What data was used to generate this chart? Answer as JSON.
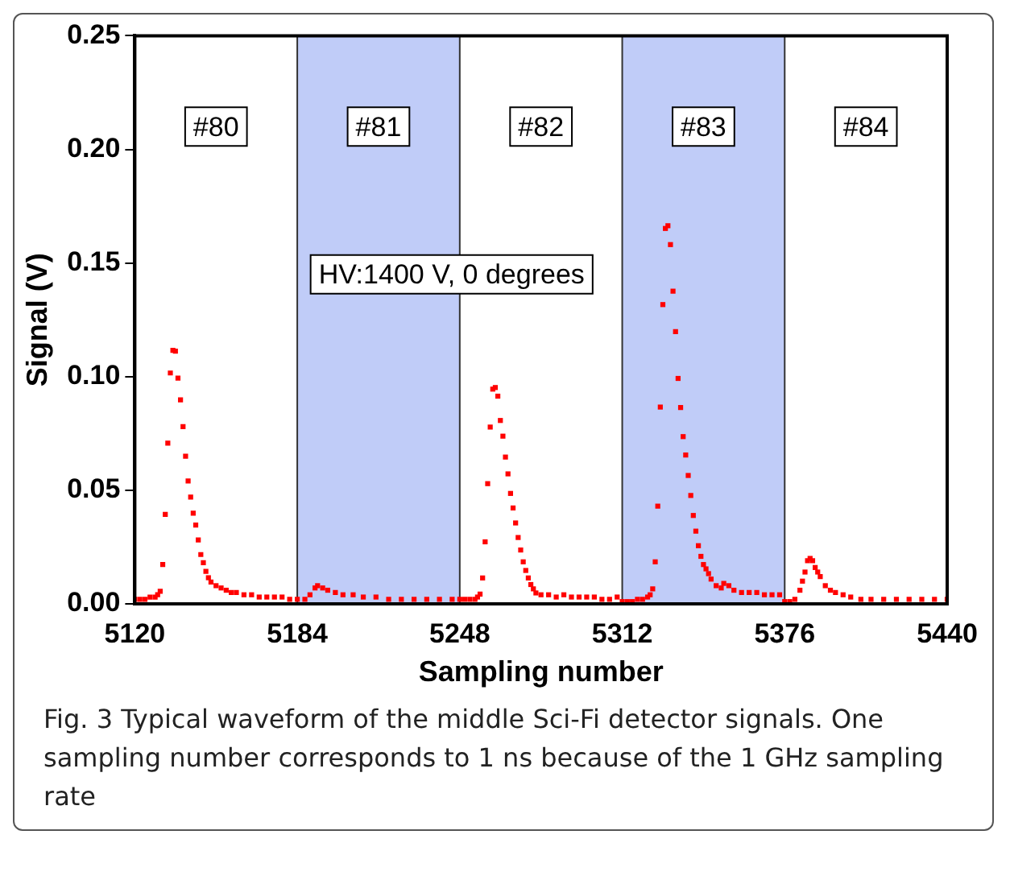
{
  "chart_data": {
    "type": "scatter",
    "xlabel": "Sampling number",
    "ylabel": "Signal (V)",
    "xlim": [
      5120,
      5440
    ],
    "xticks": [
      5120,
      5184,
      5248,
      5312,
      5376,
      5440
    ],
    "ylim": [
      0,
      0.25
    ],
    "yticks": [
      {
        "value": 0,
        "label": "0.00"
      },
      {
        "value": 0.05,
        "label": "0.05"
      },
      {
        "value": 0.1,
        "label": "0.10"
      },
      {
        "value": 0.15,
        "label": "0.15"
      },
      {
        "value": 0.2,
        "label": "0.20"
      },
      {
        "value": 0.25,
        "label": "0.25"
      }
    ],
    "grid": false,
    "legend": false,
    "marker": "square",
    "bands": [
      {
        "axis": "x",
        "from": 5184,
        "to": 5248,
        "color": "#c0ccf8"
      },
      {
        "axis": "x",
        "from": 5312,
        "to": 5376,
        "color": "#c0ccf8"
      }
    ],
    "annotations": [
      "HV:1400 V, 0 degrees",
      "Fig. 3 Typical waveform of the middle Sci-Fi detector signals. One sampling number corresponds to 1 ns because of the 1 GHz sampling rate",
      {
        "text": "#80",
        "x": 5152,
        "y": 0.21
      },
      {
        "text": "#81",
        "x": 5216,
        "y": 0.21
      },
      {
        "text": "#82",
        "x": 5280,
        "y": 0.21
      },
      {
        "text": "#83",
        "x": 5344,
        "y": 0.21
      },
      {
        "text": "#84",
        "x": 5408,
        "y": 0.21
      }
    ],
    "series": [
      {
        "color": "#ff0000",
        "x": [
          5120,
          5122,
          5124,
          5126,
          5128,
          5129,
          5130,
          5131,
          5132,
          5133,
          5134,
          5135,
          5136,
          5137,
          5138,
          5139,
          5140,
          5141,
          5142,
          5143,
          5144,
          5145,
          5146,
          5147,
          5148,
          5149,
          5150,
          5152,
          5154,
          5156,
          5158,
          5160,
          5163,
          5166,
          5169,
          5172,
          5175,
          5178,
          5181,
          5184,
          5187,
          5189,
          5191,
          5192,
          5194,
          5196,
          5199,
          5202,
          5206,
          5210,
          5215,
          5220,
          5225,
          5230,
          5235,
          5240,
          5245,
          5248,
          5250,
          5252,
          5254,
          5255,
          5256,
          5257,
          5258,
          5259,
          5260,
          5261,
          5262,
          5263,
          5264,
          5265,
          5266,
          5267,
          5268,
          5269,
          5270,
          5271,
          5272,
          5273,
          5274,
          5275,
          5276,
          5277,
          5278,
          5280,
          5283,
          5286,
          5289,
          5292,
          5295,
          5298,
          5301,
          5304,
          5307,
          5310,
          5312,
          5314,
          5316,
          5318,
          5320,
          5322,
          5323,
          5324,
          5325,
          5326,
          5327,
          5328,
          5329,
          5330,
          5331,
          5332,
          5333,
          5334,
          5335,
          5336,
          5337,
          5338,
          5339,
          5340,
          5341,
          5342,
          5343,
          5344,
          5345,
          5346,
          5347,
          5349,
          5351,
          5352,
          5354,
          5356,
          5359,
          5362,
          5365,
          5368,
          5371,
          5374,
          5376,
          5378,
          5380,
          5382,
          5383,
          5384,
          5385,
          5386,
          5387,
          5388,
          5389,
          5390,
          5392,
          5394,
          5396,
          5399,
          5402,
          5406,
          5410,
          5415,
          5420,
          5425,
          5430,
          5435,
          5440
        ],
        "values": [
          0.002,
          0.002,
          0.002,
          0.003,
          0.003,
          0.004,
          0.0055,
          0.0173,
          0.0394,
          0.0707,
          0.1016,
          0.1116,
          0.1112,
          0.0993,
          0.0898,
          0.078,
          0.065,
          0.0541,
          0.047,
          0.0399,
          0.0347,
          0.0281,
          0.0217,
          0.0181,
          0.0143,
          0.0115,
          0.0096,
          0.008,
          0.007,
          0.006,
          0.005,
          0.005,
          0.004,
          0.004,
          0.003,
          0.003,
          0.003,
          0.003,
          0.002,
          0.002,
          0.002,
          0.004,
          0.007,
          0.008,
          0.007,
          0.006,
          0.005,
          0.004,
          0.004,
          0.003,
          0.003,
          0.002,
          0.002,
          0.002,
          0.002,
          0.002,
          0.002,
          0.002,
          0.002,
          0.002,
          0.002,
          0.003,
          0.0043,
          0.0114,
          0.0273,
          0.0529,
          0.0778,
          0.0945,
          0.0952,
          0.0914,
          0.0807,
          0.0738,
          0.0646,
          0.0572,
          0.0486,
          0.0422,
          0.0356,
          0.0292,
          0.0237,
          0.0185,
          0.0147,
          0.0114,
          0.0085,
          0.0066,
          0.0048,
          0.004,
          0.004,
          0.003,
          0.004,
          0.003,
          0.003,
          0.003,
          0.003,
          0.002,
          0.002,
          0.003,
          0.001,
          0.001,
          0.001,
          0.002,
          0.002,
          0.003,
          0.004,
          0.0066,
          0.0185,
          0.043,
          0.0866,
          0.1317,
          0.1652,
          0.1664,
          0.1581,
          0.1376,
          0.1198,
          0.0992,
          0.0864,
          0.0736,
          0.0655,
          0.0565,
          0.0477,
          0.0389,
          0.032,
          0.0256,
          0.0209,
          0.0173,
          0.0154,
          0.0133,
          0.0109,
          0.008,
          0.007,
          0.009,
          0.008,
          0.006,
          0.005,
          0.005,
          0.005,
          0.004,
          0.004,
          0.004,
          0.001,
          0.001,
          0.002,
          0.006,
          0.01,
          0.014,
          0.019,
          0.02,
          0.019,
          0.016,
          0.014,
          0.012,
          0.008,
          0.006,
          0.005,
          0.004,
          0.003,
          0.002,
          0.002,
          0.002,
          0.002,
          0.002,
          0.002,
          0.002,
          0.002
        ]
      }
    ]
  }
}
